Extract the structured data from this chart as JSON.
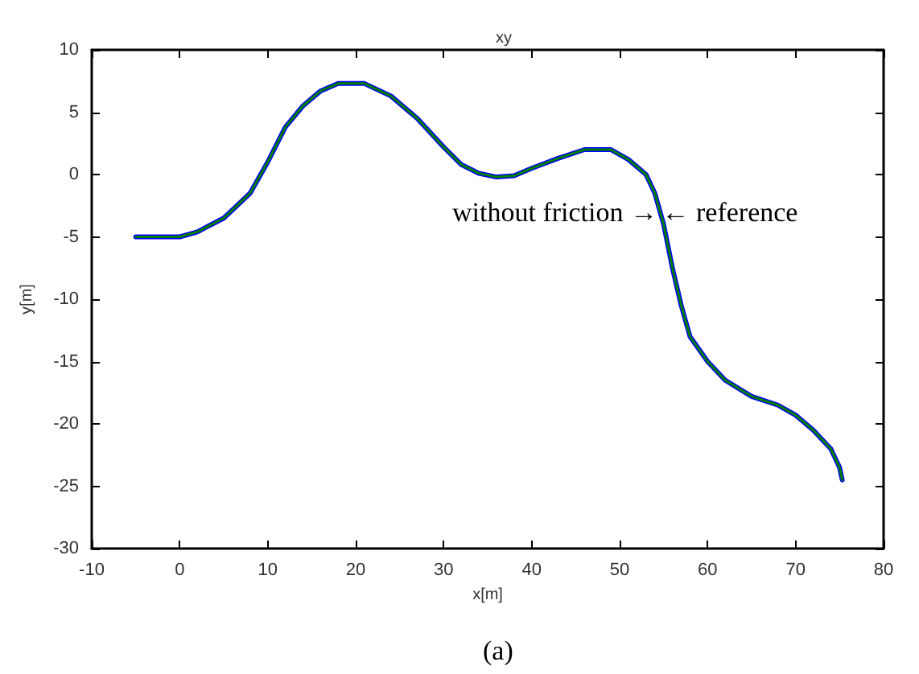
{
  "chart_data": {
    "type": "line",
    "title": "xy",
    "xlabel": "x[m]",
    "ylabel": "y[m]",
    "x": [
      -5,
      0,
      2,
      5,
      8,
      10,
      12,
      14,
      16,
      18,
      21,
      24,
      27,
      30,
      32,
      34,
      36,
      38,
      40,
      43,
      46,
      49,
      51,
      53,
      54,
      55,
      56,
      57,
      58,
      60,
      62,
      65,
      68,
      70,
      72,
      74,
      75,
      75.3
    ],
    "series": [
      {
        "color": "#0000ff",
        "values": [
          -5,
          -5,
          -4.6,
          -3.5,
          -1.5,
          1,
          3.8,
          5.5,
          6.7,
          7.3,
          7.3,
          6.3,
          4.5,
          2.2,
          0.8,
          0.1,
          -0.2,
          -0.1,
          0.5,
          1.3,
          2,
          2,
          1.2,
          0,
          -1.5,
          -4,
          -7.5,
          -10.5,
          -13,
          -15,
          -16.5,
          -17.8,
          -18.5,
          -19.3,
          -20.5,
          -22,
          -23.5,
          -24.5
        ]
      },
      {
        "color": "#008000",
        "values": [
          -5,
          -5,
          -4.6,
          -3.5,
          -1.5,
          1,
          3.8,
          5.5,
          6.7,
          7.3,
          7.3,
          6.3,
          4.5,
          2.2,
          0.8,
          0.1,
          -0.2,
          -0.1,
          0.5,
          1.3,
          2,
          2,
          1.2,
          0,
          -1.5,
          -4,
          -7.5,
          -10.5,
          -13,
          -15,
          -16.5,
          -17.8,
          -18.5,
          -19.3,
          -20.5,
          -22,
          -23.5,
          -24.5
        ]
      }
    ],
    "annotations": [
      {
        "text": "without friction →",
        "x": 54.3,
        "y": -3
      },
      {
        "text": "← reference",
        "x": 54.8,
        "y": -3
      },
      "(a)"
    ],
    "xlim": [
      -10,
      80
    ],
    "xticks": [
      -10,
      0,
      10,
      20,
      30,
      40,
      50,
      60,
      70,
      80
    ],
    "ylim": [
      -30,
      10
    ],
    "yticks": [
      -30,
      -25,
      -20,
      -15,
      -10,
      -5,
      0,
      5,
      10
    ],
    "grid": false,
    "marker": "none",
    "line_style": "solid"
  }
}
